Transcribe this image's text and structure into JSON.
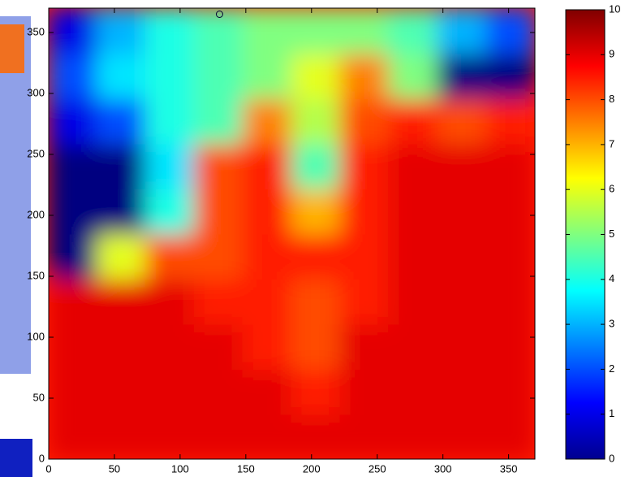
{
  "chart_data": {
    "type": "heatmap",
    "xlim": [
      0,
      370
    ],
    "ylim": [
      0,
      370
    ],
    "xticks": [
      0,
      50,
      100,
      150,
      200,
      250,
      300,
      350
    ],
    "yticks": [
      0,
      50,
      100,
      150,
      200,
      250,
      300,
      350
    ],
    "xbins": [
      0,
      37,
      74,
      111,
      148,
      185,
      222,
      259,
      296,
      333,
      370
    ],
    "ybins": [
      0,
      37,
      74,
      111,
      148,
      185,
      222,
      259,
      296,
      333,
      370
    ],
    "z": [
      [
        9,
        9,
        9,
        9,
        9,
        9,
        9,
        9,
        9,
        9
      ],
      [
        9,
        9,
        9,
        9,
        9,
        8.5,
        9,
        9,
        9,
        9
      ],
      [
        9,
        9,
        9,
        9,
        8.5,
        8,
        9,
        9,
        9,
        9
      ],
      [
        9,
        9,
        9,
        8.5,
        8.5,
        8,
        8.5,
        9,
        9,
        9
      ],
      [
        0,
        6,
        8,
        8,
        8.5,
        8.5,
        8.5,
        9,
        9,
        9
      ],
      [
        0,
        0,
        4,
        8,
        8.5,
        7,
        8.5,
        9,
        9,
        9
      ],
      [
        0,
        0,
        3.5,
        8,
        8.5,
        4.5,
        8.5,
        9,
        9,
        9
      ],
      [
        1,
        2,
        4,
        4.5,
        7.5,
        5.5,
        8,
        8.5,
        8,
        8.5
      ],
      [
        2,
        3.5,
        4,
        4.5,
        5,
        6,
        7.5,
        5,
        0,
        0
      ],
      [
        1,
        3,
        4,
        4.5,
        5,
        5,
        5,
        4.5,
        3,
        2
      ]
    ],
    "marker": {
      "x": 130,
      "y": 365
    },
    "clim": [
      0,
      10
    ],
    "cticks": [
      0,
      1,
      2,
      3,
      4,
      5,
      6,
      7,
      8,
      9,
      10
    ],
    "colormap": "jet"
  }
}
